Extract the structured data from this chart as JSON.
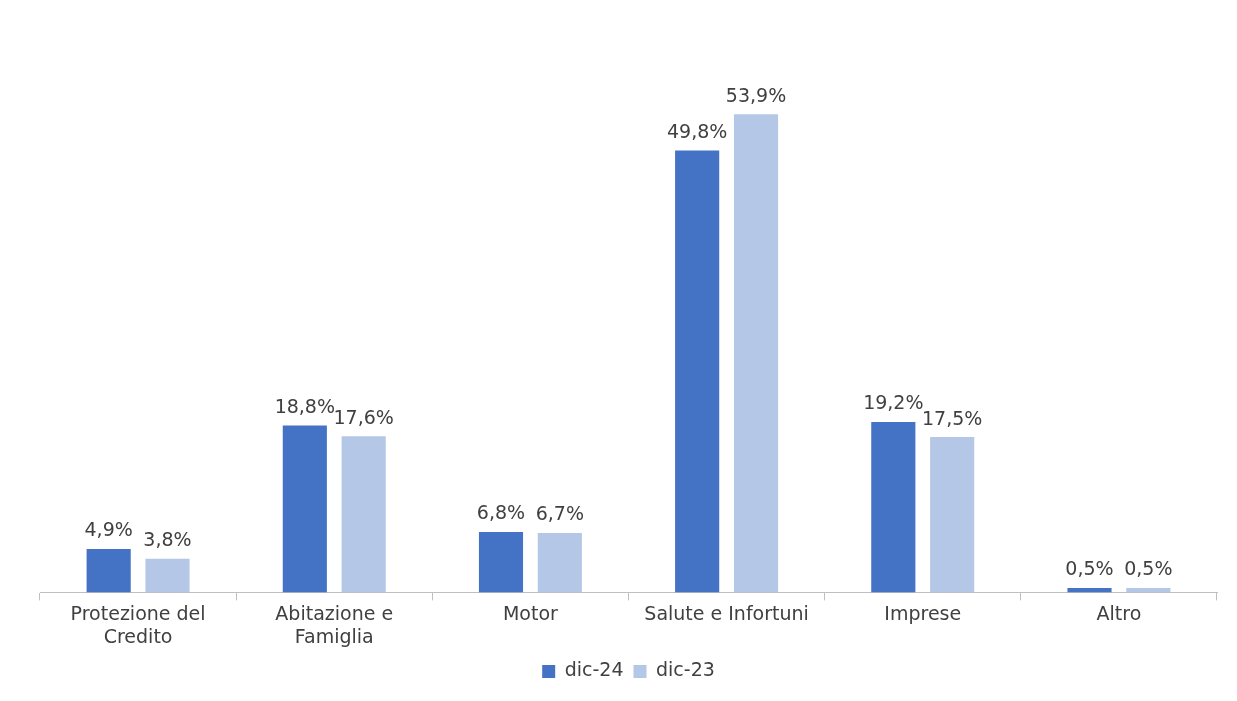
{
  "chart_data": {
    "type": "bar",
    "categories": [
      "Protezione del Credito",
      "Abitazione e Famiglia",
      "Motor",
      "Salute e Infortuni",
      "Imprese",
      "Altro"
    ],
    "series": [
      {
        "name": "dic-24",
        "color": "#4472c4",
        "values": [
          4.9,
          18.8,
          6.8,
          49.8,
          19.2,
          0.5
        ],
        "value_labels": [
          "4,9%",
          "18,8%",
          "6,8%",
          "49,8%",
          "19,2%",
          "0,5%"
        ]
      },
      {
        "name": "dic-23",
        "color": "#b4c7e7",
        "values": [
          3.8,
          17.6,
          6.7,
          53.9,
          17.5,
          0.5
        ],
        "value_labels": [
          "3,8%",
          "17,6%",
          "6,7%",
          "53,9%",
          "17,5%",
          "0,5%"
        ]
      }
    ],
    "grid": false,
    "legend": "bottom"
  }
}
